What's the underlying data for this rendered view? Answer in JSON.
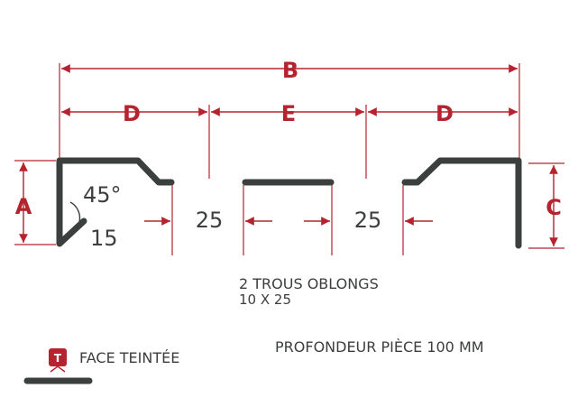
{
  "dimensions": {
    "overall": "B",
    "left_segment": "D",
    "center_segment": "E",
    "right_segment": "D",
    "left_height": "A",
    "right_height": "C"
  },
  "profile_labels": {
    "angle": "45°",
    "return_length": "15",
    "left_gap": "25",
    "right_gap": "25"
  },
  "notes": {
    "holes_line1": "2 TROUS OBLONGS",
    "holes_line2": "10 X 25",
    "depth": "PROFONDEUR PIÈCE 100 MM"
  },
  "legend": {
    "badge": "T",
    "label": "FACE TEINTÉE"
  },
  "colors": {
    "dimension": "#b5232e",
    "profile": "#3b3f3e"
  }
}
